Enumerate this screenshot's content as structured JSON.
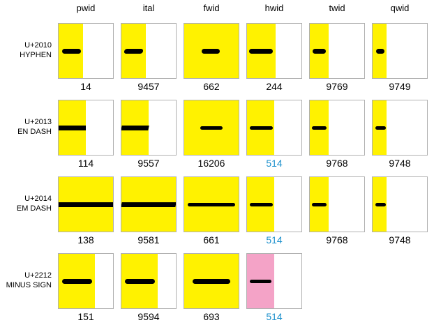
{
  "colors": {
    "fill_default": "#fff200",
    "fill_pink": "#f4a3c7",
    "number_highlight": "#1a8fcc"
  },
  "columns": [
    "pwid",
    "ital",
    "fwid",
    "hwid",
    "twid",
    "qwid"
  ],
  "rows": [
    {
      "code": "U+2010",
      "name": "HYPHEN",
      "cells": [
        {
          "number": "14",
          "fill": 0.45,
          "bar": [
            0.06,
            0.41
          ],
          "thick": "thick"
        },
        {
          "number": "9457",
          "fill": 0.45,
          "bar": [
            0.05,
            0.4
          ],
          "thick": "thick",
          "skew": true
        },
        {
          "number": "662",
          "fill": 1.0,
          "bar": [
            0.32,
            0.66
          ],
          "thick": "thick"
        },
        {
          "number": "244",
          "fill": 0.52,
          "bar": [
            0.04,
            0.47
          ],
          "thick": "thick"
        },
        {
          "number": "9769",
          "fill": 0.35,
          "bar": [
            0.05,
            0.3
          ],
          "thick": "thick"
        },
        {
          "number": "9749",
          "fill": 0.25,
          "bar": [
            0.06,
            0.22
          ],
          "thick": "thick"
        }
      ]
    },
    {
      "code": "U+2013",
      "name": "EN DASH",
      "cells": [
        {
          "number": "114",
          "fill": 0.5,
          "bar": [
            0.0,
            0.5
          ],
          "thick": "thick"
        },
        {
          "number": "9557",
          "fill": 0.5,
          "bar": [
            0.0,
            0.5
          ],
          "thick": "thick",
          "skew": true
        },
        {
          "number": "16206",
          "fill": 1.0,
          "bar": [
            0.29,
            0.71
          ],
          "thick": "medium"
        },
        {
          "number": "514",
          "fill": 0.5,
          "bar": [
            0.05,
            0.47
          ],
          "thick": "medium",
          "blue": true
        },
        {
          "number": "9768",
          "fill": 0.35,
          "bar": [
            0.04,
            0.31
          ],
          "thick": "medium"
        },
        {
          "number": "9748",
          "fill": 0.25,
          "bar": [
            0.05,
            0.24
          ],
          "thick": "medium"
        }
      ]
    },
    {
      "code": "U+2014",
      "name": "EM DASH",
      "cells": [
        {
          "number": "138",
          "fill": 1.0,
          "bar": [
            0.0,
            1.0
          ],
          "thick": "thick"
        },
        {
          "number": "9581",
          "fill": 1.0,
          "bar": [
            0.0,
            1.0
          ],
          "thick": "thick",
          "skew": true
        },
        {
          "number": "661",
          "fill": 1.0,
          "bar": [
            0.06,
            0.94
          ],
          "thick": "medium"
        },
        {
          "number": "514",
          "fill": 0.5,
          "bar": [
            0.05,
            0.47
          ],
          "thick": "medium",
          "blue": true
        },
        {
          "number": "9768",
          "fill": 0.35,
          "bar": [
            0.04,
            0.31
          ],
          "thick": "medium"
        },
        {
          "number": "9748",
          "fill": 0.25,
          "bar": [
            0.05,
            0.24
          ],
          "thick": "medium"
        }
      ]
    },
    {
      "code": "U+2212",
      "name": "MINUS SIGN",
      "cells": [
        {
          "number": "151",
          "fill": 0.67,
          "bar": [
            0.06,
            0.62
          ],
          "thick": "thick"
        },
        {
          "number": "9594",
          "fill": 0.67,
          "bar": [
            0.06,
            0.62
          ],
          "thick": "thick"
        },
        {
          "number": "693",
          "fill": 1.0,
          "bar": [
            0.15,
            0.85
          ],
          "thick": "thick"
        },
        {
          "number": "514",
          "fill": 0.5,
          "bar": [
            0.05,
            0.45
          ],
          "thick": "medium",
          "blue": true,
          "pink": true
        }
      ]
    }
  ]
}
